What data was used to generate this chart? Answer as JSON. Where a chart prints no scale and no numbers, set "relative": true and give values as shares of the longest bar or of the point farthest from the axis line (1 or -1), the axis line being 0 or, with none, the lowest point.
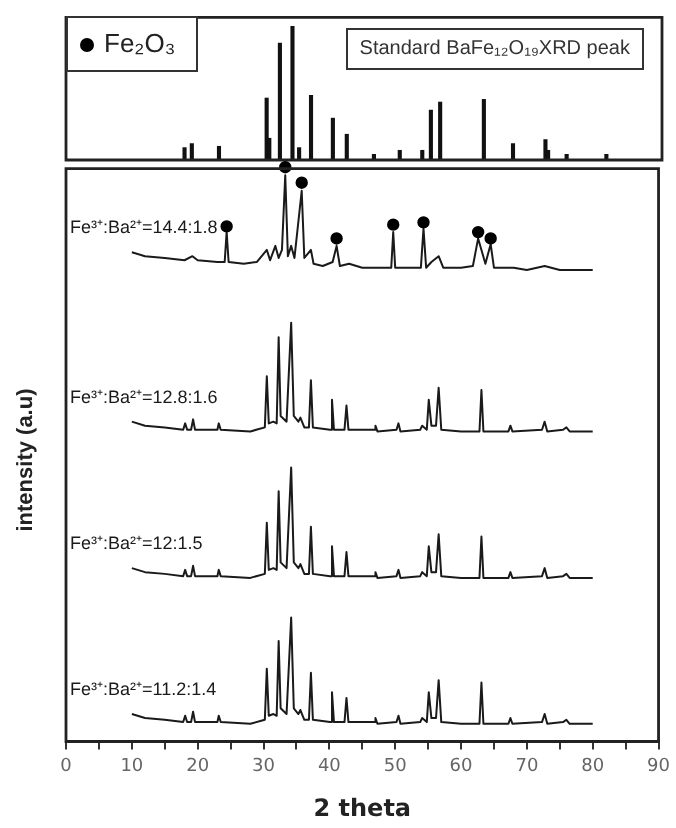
{
  "chart_data": [
    {
      "type": "bar",
      "relative": true,
      "xlim": [
        0,
        90
      ],
      "tick_labels": false,
      "annotations": [
        "Standard BaFe₁₂O₁₉XRD peak"
      ],
      "series": [
        {
          "color": "#111111",
          "x": [
            17.9,
            19.0,
            23.1,
            30.3,
            30.7,
            32.3,
            34.2,
            35.2,
            37.0,
            40.3,
            42.4,
            46.5,
            50.4,
            53.8,
            55.1,
            56.5,
            63.1,
            67.5,
            72.4,
            72.8,
            75.6,
            81.6
          ],
          "values": [
            0.09,
            0.12,
            0.1,
            0.46,
            0.16,
            0.87,
            1,
            0.09,
            0.48,
            0.31,
            0.19,
            0.04,
            0.07,
            0.07,
            0.37,
            0.43,
            0.45,
            0.12,
            0.15,
            0.07,
            0.04,
            0.04
          ]
        }
      ]
    },
    {
      "type": "line",
      "relative": true,
      "xlabel": "2 theta",
      "ylabel": "intensity (a.u)",
      "xlim": [
        0,
        90
      ],
      "xticks": [
        0,
        {
          "value": 5,
          "label": null
        },
        10,
        {
          "value": 15,
          "label": null
        },
        20,
        {
          "value": 25,
          "label": null
        },
        30,
        {
          "value": 35,
          "label": null
        },
        40,
        {
          "value": 45,
          "label": null
        },
        50,
        {
          "value": 55,
          "label": null
        },
        60,
        {
          "value": 65,
          "label": null
        },
        70,
        {
          "value": 75,
          "label": null
        },
        80,
        {
          "value": 85,
          "label": null
        },
        90
      ],
      "legend": "top left",
      "marker": "none",
      "line_style": "solid",
      "series": [
        {
          "name": "Fe³⁺:Ba²⁺=14.4:1.8",
          "color": "#1a1a1a",
          "x": [
            10,
            12,
            15,
            18,
            19.2,
            20,
            23,
            24.1,
            24.4,
            24.7,
            27,
            29,
            30.5,
            31,
            31.8,
            32.3,
            32.8,
            33.3,
            33.7,
            34.2,
            34.7,
            35.8,
            36.2,
            37.2,
            37.6,
            39,
            40.5,
            41.1,
            41.6,
            43,
            45,
            47,
            49.4,
            49.7,
            50,
            52,
            53.9,
            54.3,
            54.7,
            55.5,
            56.6,
            57.3,
            60,
            61.8,
            62.6,
            63.1,
            63.7,
            64.5,
            65,
            68,
            70,
            72.7,
            75,
            78,
            80
          ],
          "values": [
            0.852,
            0.845,
            0.842,
            0.838,
            0.845,
            0.838,
            0.835,
            0.835,
            0.887,
            0.835,
            0.832,
            0.835,
            0.856,
            0.838,
            0.863,
            0.842,
            0.856,
            0.986,
            0.845,
            0.863,
            0.842,
            0.959,
            0.842,
            0.856,
            0.832,
            0.828,
            0.835,
            0.863,
            0.828,
            0.832,
            0.825,
            0.825,
            0.825,
            0.887,
            0.825,
            0.825,
            0.825,
            0.893,
            0.825,
            0.835,
            0.845,
            0.825,
            0.825,
            0.828,
            0.876,
            0.856,
            0.832,
            0.866,
            0.825,
            0.825,
            0.821,
            0.828,
            0.821,
            0.821,
            0.821
          ]
        },
        {
          "name": "Fe³⁺:Ba²⁺=12.8:1.6",
          "color": "#1a1a1a",
          "x": [
            10,
            12,
            15,
            17.8,
            18.1,
            18.4,
            19.0,
            19.3,
            19.6,
            23.0,
            23.2,
            23.5,
            28,
            30.2,
            30.5,
            30.8,
            31.5,
            32.0,
            32.3,
            32.6,
            33.5,
            34.2,
            34.6,
            35.3,
            35.6,
            36.2,
            36.9,
            37.2,
            37.5,
            40.1,
            40.4,
            40.7,
            42.3,
            42.6,
            42.9,
            46.8,
            47.0,
            47.3,
            50.2,
            50.5,
            50.8,
            53.8,
            54.1,
            54.8,
            55.1,
            55.5,
            56.2,
            56.6,
            57.0,
            60,
            62.8,
            63.1,
            63.4,
            67.2,
            67.5,
            67.8,
            72.3,
            72.7,
            73.1,
            75.5,
            76.0,
            76.5,
            80
          ],
          "values": [
            0.557,
            0.55,
            0.547,
            0.543,
            0.554,
            0.543,
            0.543,
            0.561,
            0.543,
            0.543,
            0.554,
            0.543,
            0.54,
            0.547,
            0.636,
            0.554,
            0.557,
            0.554,
            0.704,
            0.567,
            0.557,
            0.729,
            0.567,
            0.557,
            0.564,
            0.547,
            0.547,
            0.629,
            0.547,
            0.543,
            0.595,
            0.543,
            0.543,
            0.585,
            0.543,
            0.543,
            0.55,
            0.54,
            0.543,
            0.554,
            0.54,
            0.543,
            0.55,
            0.543,
            0.595,
            0.55,
            0.55,
            0.616,
            0.543,
            0.54,
            0.54,
            0.612,
            0.54,
            0.54,
            0.55,
            0.54,
            0.543,
            0.557,
            0.54,
            0.543,
            0.547,
            0.54,
            0.54
          ]
        },
        {
          "name": "Fe³⁺:Ba²⁺=12:1.5",
          "color": "#1a1a1a",
          "x": [
            10,
            12,
            15,
            17.8,
            18.1,
            18.4,
            19.0,
            19.3,
            19.6,
            23.0,
            23.2,
            23.5,
            28,
            30.2,
            30.5,
            30.8,
            31.5,
            32.0,
            32.3,
            32.6,
            33.5,
            34.2,
            34.6,
            35.3,
            35.6,
            36.2,
            36.9,
            37.2,
            37.5,
            40.1,
            40.4,
            40.7,
            42.3,
            42.6,
            42.9,
            46.8,
            47.0,
            47.3,
            50.2,
            50.5,
            50.8,
            53.8,
            54.1,
            54.8,
            55.1,
            55.5,
            56.2,
            56.6,
            57.0,
            60,
            62.8,
            63.1,
            63.4,
            67.2,
            67.5,
            67.8,
            72.3,
            72.7,
            73.1,
            75.5,
            76.0,
            76.5,
            80
          ],
          "values": [
            0.302,
            0.295,
            0.292,
            0.288,
            0.299,
            0.288,
            0.288,
            0.306,
            0.288,
            0.288,
            0.299,
            0.288,
            0.285,
            0.292,
            0.381,
            0.299,
            0.302,
            0.299,
            0.436,
            0.312,
            0.302,
            0.477,
            0.312,
            0.302,
            0.309,
            0.292,
            0.292,
            0.374,
            0.292,
            0.288,
            0.34,
            0.288,
            0.288,
            0.33,
            0.288,
            0.288,
            0.295,
            0.285,
            0.288,
            0.299,
            0.285,
            0.288,
            0.295,
            0.288,
            0.34,
            0.295,
            0.295,
            0.361,
            0.288,
            0.285,
            0.285,
            0.357,
            0.285,
            0.285,
            0.295,
            0.285,
            0.288,
            0.302,
            0.285,
            0.288,
            0.292,
            0.285,
            0.285
          ]
        },
        {
          "name": "Fe³⁺:Ba²⁺=11.2:1.4",
          "color": "#1a1a1a",
          "x": [
            10,
            12,
            15,
            17.8,
            18.1,
            18.4,
            19.0,
            19.3,
            19.6,
            23.0,
            23.2,
            23.5,
            28,
            30.2,
            30.5,
            30.8,
            31.5,
            32.0,
            32.3,
            32.6,
            33.5,
            34.2,
            34.6,
            35.3,
            35.6,
            36.2,
            36.9,
            37.2,
            37.5,
            40.1,
            40.4,
            40.7,
            42.3,
            42.6,
            42.9,
            46.8,
            47.0,
            47.3,
            50.2,
            50.5,
            50.8,
            53.8,
            54.1,
            54.8,
            55.1,
            55.5,
            56.2,
            56.6,
            57.0,
            60,
            62.8,
            63.1,
            63.4,
            67.2,
            67.5,
            67.8,
            72.3,
            72.7,
            73.1,
            75.5,
            76.0,
            76.5,
            80
          ],
          "values": [
            0.048,
            0.041,
            0.038,
            0.034,
            0.045,
            0.034,
            0.034,
            0.052,
            0.034,
            0.034,
            0.045,
            0.034,
            0.031,
            0.038,
            0.127,
            0.045,
            0.048,
            0.045,
            0.175,
            0.058,
            0.048,
            0.216,
            0.058,
            0.048,
            0.055,
            0.038,
            0.038,
            0.12,
            0.038,
            0.034,
            0.086,
            0.034,
            0.034,
            0.076,
            0.034,
            0.034,
            0.041,
            0.031,
            0.034,
            0.045,
            0.031,
            0.034,
            0.041,
            0.034,
            0.086,
            0.041,
            0.041,
            0.107,
            0.034,
            0.031,
            0.031,
            0.103,
            0.031,
            0.031,
            0.041,
            0.031,
            0.034,
            0.048,
            0.031,
            0.034,
            0.038,
            0.031,
            0.031
          ]
        },
        {
          "name": "Fe₂O₃",
          "type": "scatter",
          "marker": "circle",
          "color": "#000000",
          "x": [
            24.4,
            33.3,
            35.8,
            41.1,
            49.7,
            54.3,
            62.6,
            64.5
          ],
          "values": [
            0.897,
            1,
            0.973,
            0.876,
            0.9,
            0.904,
            0.887,
            0.876
          ]
        }
      ]
    }
  ]
}
